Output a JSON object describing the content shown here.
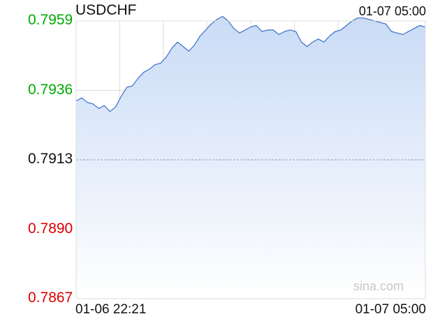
{
  "header": {
    "symbol": "USDCHF",
    "timestamp": "01-07 05:00"
  },
  "watermark": "sina.com",
  "colors": {
    "line": "#3a6fc9",
    "fill_top": "#c9dbf6",
    "fill_bottom": "#ffffff",
    "up": "#00aa00",
    "down": "#dd0000",
    "neutral": "#111111",
    "grid": "#dddddd",
    "baseline": "#9a9aae"
  },
  "chart_data": {
    "type": "area",
    "title": "USDCHF",
    "xlabel": "",
    "ylabel": "",
    "reference_price": 0.7913,
    "y_ticks": [
      {
        "label": "0.7959",
        "value": 0.7959,
        "tone": "up"
      },
      {
        "label": "0.7936",
        "value": 0.7936,
        "tone": "up"
      },
      {
        "label": "0.7913",
        "value": 0.7913,
        "tone": "neutral"
      },
      {
        "label": "0.7890",
        "value": 0.789,
        "tone": "down"
      },
      {
        "label": "0.7867",
        "value": 0.7867,
        "tone": "down"
      }
    ],
    "ylim": [
      0.7867,
      0.7959
    ],
    "x_tick_labels": [
      "01-06 22:21",
      "01-07 05:00"
    ],
    "grid": true,
    "series": [
      {
        "values": [
          0.79325,
          0.79335,
          0.7932,
          0.79315,
          0.793,
          0.7931,
          0.7929,
          0.79305,
          0.7934,
          0.7937,
          0.79375,
          0.794,
          0.7942,
          0.7943,
          0.79445,
          0.7945,
          0.7947,
          0.795,
          0.7952,
          0.79505,
          0.7949,
          0.7951,
          0.7954,
          0.7956,
          0.7958,
          0.79595,
          0.79605,
          0.7959,
          0.79565,
          0.7955,
          0.7956,
          0.7957,
          0.79575,
          0.79555,
          0.7956,
          0.7956,
          0.79545,
          0.79555,
          0.7956,
          0.79555,
          0.7952,
          0.79505,
          0.7952,
          0.7953,
          0.7952,
          0.7954,
          0.79555,
          0.7956,
          0.79575,
          0.7959,
          0.796,
          0.796,
          0.79595,
          0.7959,
          0.79585,
          0.7958,
          0.79555,
          0.7955,
          0.79545,
          0.79555,
          0.79565,
          0.79575,
          0.7957
        ]
      }
    ]
  }
}
